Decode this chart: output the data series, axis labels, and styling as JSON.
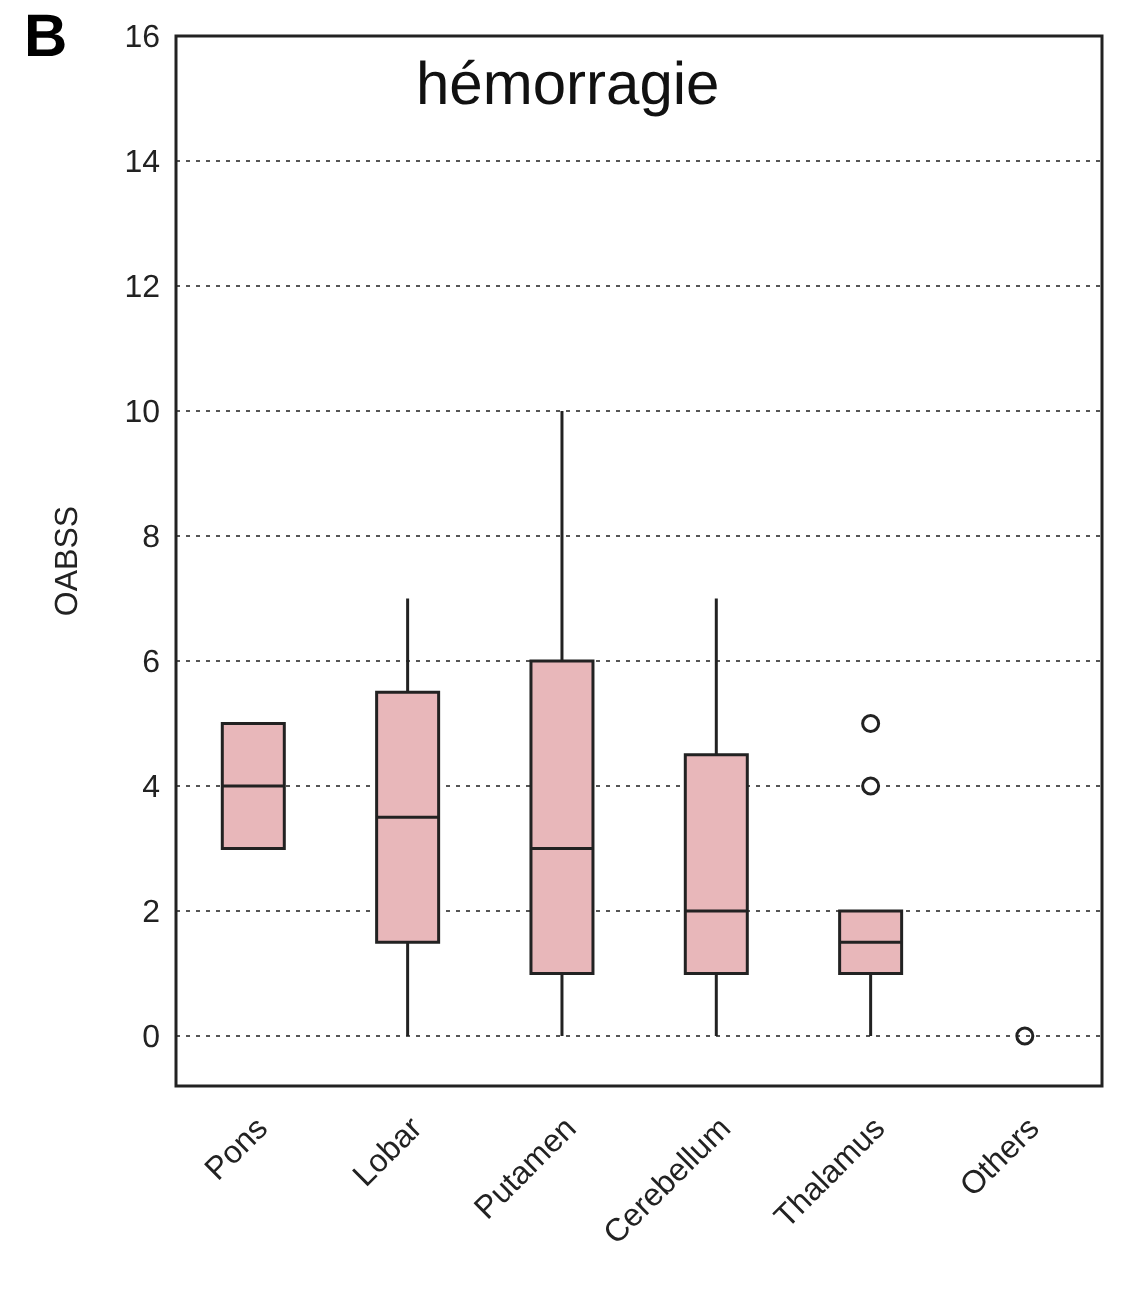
{
  "chart_data": {
    "type": "box",
    "title": "hémorragie",
    "ylabel": "OABSS",
    "annotations": [
      "B"
    ],
    "categories": [
      "Pons",
      "Lobar",
      "Putamen",
      "Cerebellum",
      "Thalamus",
      "Others"
    ],
    "color": "#e8b7ba",
    "boxes": [
      {
        "low": 3,
        "q1": 3,
        "median": 4,
        "q3": 5,
        "high": 5
      },
      {
        "low": 0,
        "q1": 1.5,
        "median": 3.5,
        "q3": 5.5,
        "high": 7
      },
      {
        "low": 0,
        "q1": 1,
        "median": 3,
        "q3": 6,
        "high": 10
      },
      {
        "low": 0,
        "q1": 1,
        "median": 2,
        "q3": 4.5,
        "high": 7
      },
      {
        "low": 0,
        "q1": 1,
        "median": 1.5,
        "q3": 2,
        "high": 2,
        "outliers": [
          4,
          5
        ]
      },
      null
    ],
    "series": [
      {
        "type": "scatter",
        "x": [
          "Others"
        ],
        "values": [
          0
        ],
        "marker": "circle",
        "color": "#222222"
      }
    ],
    "ylim": [
      -0.8,
      16
    ],
    "yticks": [
      0,
      2,
      4,
      6,
      8,
      10,
      12,
      14,
      16
    ],
    "grid": "y"
  }
}
